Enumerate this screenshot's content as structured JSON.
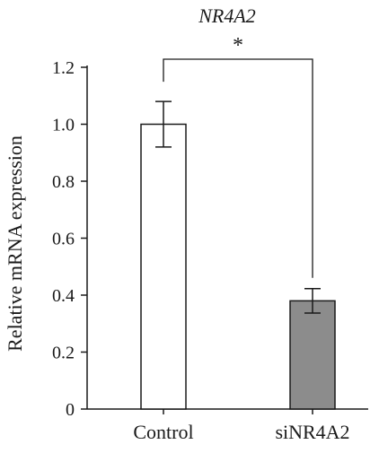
{
  "chart_data": {
    "type": "bar",
    "title": "NR4A2",
    "xlabel": "",
    "ylabel": "Relative mRNA expression",
    "categories": [
      "Control",
      "siNR4A2"
    ],
    "values": [
      1.0,
      0.38
    ],
    "errors": [
      0.08,
      0.043
    ],
    "bar_colors": [
      "#ffffff",
      "#8c8c8c"
    ],
    "ylim": [
      0,
      1.2
    ],
    "yticks": [
      "0",
      "0.2",
      "0.4",
      "0.6",
      "0.8",
      "1.0",
      "1.2"
    ],
    "grid": false,
    "significance": {
      "from": "Control",
      "to": "siNR4A2",
      "label": "*"
    }
  }
}
